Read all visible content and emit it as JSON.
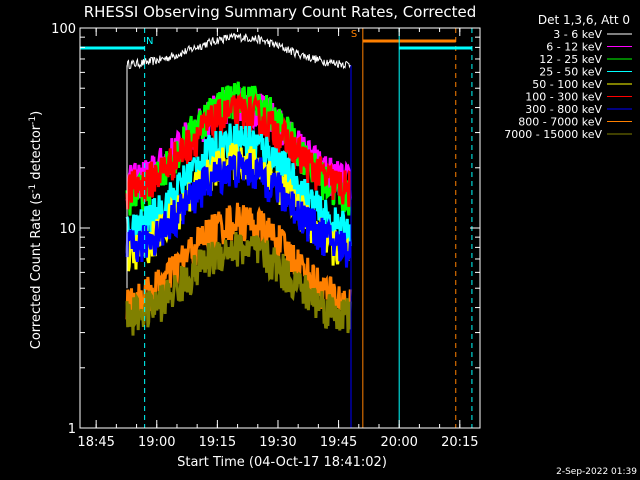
{
  "chart_data": {
    "type": "line",
    "title": "RHESSI Observing Summary Count Rates, Corrected",
    "xlabel": "Start Time (04-Oct-17 18:41:02)",
    "ylabel_main": "Corrected Count Rate (s",
    "ylabel_sup1": "-1",
    "ylabel_mid": " detector",
    "ylabel_sup2": "-1",
    "ylabel_end": ")",
    "y_scale": "log",
    "ylim": [
      1,
      100
    ],
    "xlim_minutes_after_1841": [
      0,
      99
    ],
    "y_ticks": [
      {
        "value": 1,
        "label": "1"
      },
      {
        "value": 10,
        "label": "10"
      },
      {
        "value": 100,
        "label": "100"
      }
    ],
    "x_ticks": [
      {
        "minute": 4,
        "label": "18:45"
      },
      {
        "minute": 19,
        "label": "19:00"
      },
      {
        "minute": 34,
        "label": "19:15"
      },
      {
        "minute": 49,
        "label": "19:30"
      },
      {
        "minute": 64,
        "label": "19:45"
      },
      {
        "minute": 79,
        "label": "20:00"
      },
      {
        "minute": 94,
        "label": "20:15"
      }
    ],
    "legend_title": "Det 1,3,6, Att 0",
    "legend_placement": "top-right",
    "series": [
      {
        "name": "3 - 6 keV",
        "color": "#ffffff",
        "flat": 65,
        "peak": 90
      },
      {
        "name": "6 - 12 keV",
        "color": "#ff00ff",
        "flat": 16,
        "peak": 42
      },
      {
        "name": "12 - 25 keV",
        "color": "#00ff00",
        "flat": 13,
        "peak": 45
      },
      {
        "name": "25 - 50 keV",
        "color": "#00ffff",
        "flat": 9,
        "peak": 28
      },
      {
        "name": "50 - 100 keV",
        "color": "#ffff00",
        "flat": 7,
        "peak": 22
      },
      {
        "name": "100 - 300 keV",
        "color": "#ff0000",
        "flat": 15,
        "peak": 38
      },
      {
        "name": "300 - 800 keV",
        "color": "#0000ff",
        "flat": 7.5,
        "peak": 20
      },
      {
        "name": "800 - 7000 keV",
        "color": "#ff8000",
        "flat": 4,
        "peak": 11
      },
      {
        "name": "7000 - 15000 keV",
        "color": "#808000",
        "flat": 3.5,
        "peak": 8
      }
    ],
    "observing_flags": [
      {
        "label": "N",
        "color": "#00ffff",
        "start_minute": 0,
        "end_minute": 16
      },
      {
        "label": "S",
        "color": "#ff8000",
        "start_minute": 70,
        "end_minute": 93
      },
      {
        "label": "",
        "color": "#00ffff",
        "start_minute": 79,
        "end_minute": 97
      }
    ]
  },
  "footer": {
    "timestamp": "2-Sep-2022 01:39"
  }
}
